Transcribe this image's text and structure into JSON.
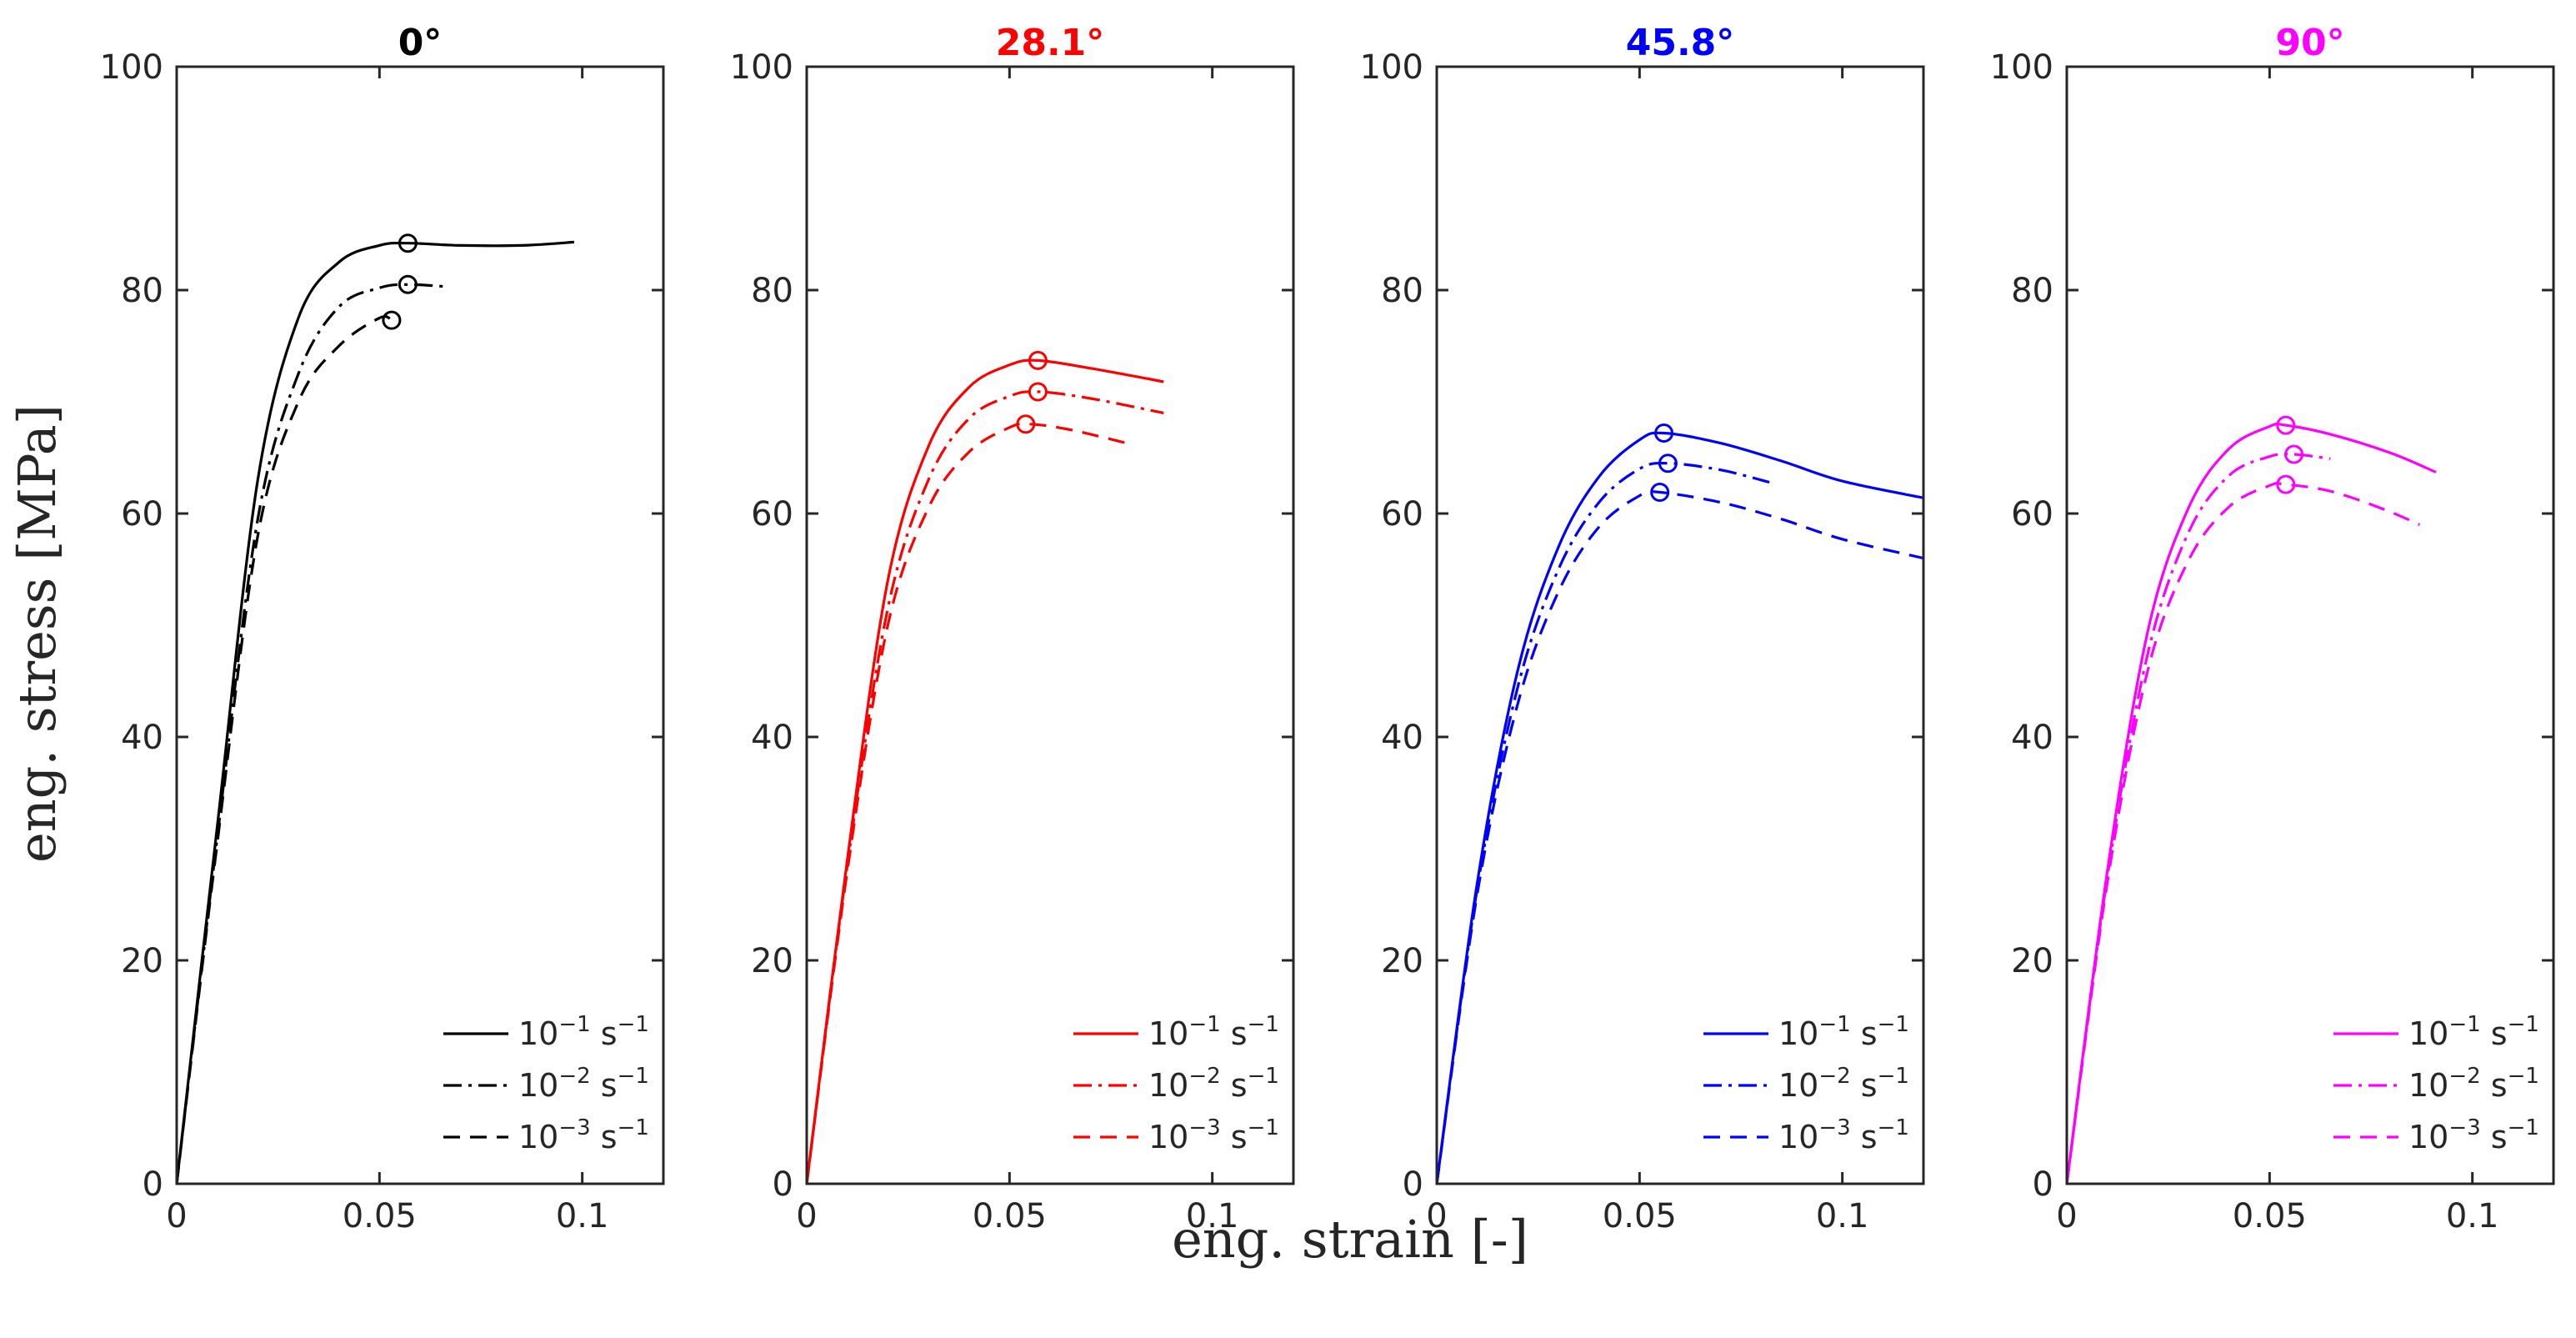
{
  "figure": {
    "xlabel": "eng. strain [-]",
    "ylabel": "eng. stress [MPa]"
  },
  "chart_data": [
    {
      "type": "line",
      "title": "0°",
      "title_color": "#000000",
      "color": "#000000",
      "xlim": [
        0,
        0.12
      ],
      "ylim": [
        0,
        100
      ],
      "xticks": [
        0,
        0.05,
        0.1
      ],
      "xtick_labels": [
        "0",
        "0.05",
        "0.1"
      ],
      "yticks": [
        0,
        20,
        40,
        60,
        80,
        100
      ],
      "ytick_labels": [
        "0",
        "20",
        "40",
        "60",
        "80",
        "100"
      ],
      "legend": "bottom-right",
      "series": [
        {
          "name": "10⁻¹ s⁻¹",
          "base": "10",
          "exp": "−1",
          "unit": "s",
          "unit_exp": "−1",
          "style": "solid",
          "x": [
            0,
            0.01,
            0.02,
            0.03,
            0.04,
            0.05,
            0.057,
            0.07,
            0.085,
            0.098
          ],
          "y": [
            0,
            32,
            63,
            77.5,
            82.5,
            84,
            84.2,
            84,
            84,
            84.3
          ],
          "peak": [
            0.057,
            84.2
          ]
        },
        {
          "name": "10⁻² s⁻¹",
          "base": "10",
          "exp": "−2",
          "unit": "s",
          "unit_exp": "−1",
          "style": "dashdot",
          "x": [
            0,
            0.01,
            0.02,
            0.03,
            0.04,
            0.05,
            0.057,
            0.067
          ],
          "y": [
            0,
            31,
            59.5,
            72.5,
            78.5,
            80.2,
            80.5,
            80.3
          ],
          "peak": [
            0.057,
            80.5
          ]
        },
        {
          "name": "10⁻³ s⁻¹",
          "base": "10",
          "exp": "−3",
          "unit": "s",
          "unit_exp": "−1",
          "style": "dashed",
          "x": [
            0,
            0.01,
            0.02,
            0.03,
            0.04,
            0.05,
            0.053
          ],
          "y": [
            0,
            30.5,
            58,
            70,
            75,
            77.5,
            77.3
          ],
          "peak": [
            0.053,
            77.3
          ]
        }
      ]
    },
    {
      "type": "line",
      "title": "28.1°",
      "title_color": "#ff0000",
      "color": "#ff0000",
      "xlim": [
        0,
        0.12
      ],
      "ylim": [
        0,
        100
      ],
      "xticks": [
        0,
        0.05,
        0.1
      ],
      "xtick_labels": [
        "0",
        "0.05",
        "0.1"
      ],
      "yticks": [
        0,
        20,
        40,
        60,
        80,
        100
      ],
      "ytick_labels": [
        "0",
        "20",
        "40",
        "60",
        "80",
        "100"
      ],
      "legend": "bottom-right",
      "series": [
        {
          "name": "10⁻¹ s⁻¹",
          "base": "10",
          "exp": "−1",
          "unit": "s",
          "unit_exp": "−1",
          "style": "solid",
          "x": [
            0,
            0.01,
            0.02,
            0.03,
            0.04,
            0.05,
            0.057,
            0.07,
            0.088
          ],
          "y": [
            0,
            29,
            54,
            66,
            71.3,
            73.3,
            73.7,
            73,
            71.8
          ],
          "peak": [
            0.057,
            73.7
          ]
        },
        {
          "name": "10⁻² s⁻¹",
          "base": "10",
          "exp": "−2",
          "unit": "s",
          "unit_exp": "−1",
          "style": "dashdot",
          "x": [
            0,
            0.01,
            0.02,
            0.03,
            0.04,
            0.05,
            0.057,
            0.07,
            0.088
          ],
          "y": [
            0,
            28.5,
            51.5,
            63,
            68.5,
            70.5,
            70.9,
            70.3,
            69
          ],
          "peak": [
            0.057,
            70.9
          ]
        },
        {
          "name": "10⁻³ s⁻¹",
          "base": "10",
          "exp": "−3",
          "unit": "s",
          "unit_exp": "−1",
          "style": "dashed",
          "x": [
            0,
            0.01,
            0.02,
            0.03,
            0.04,
            0.05,
            0.055,
            0.065,
            0.08
          ],
          "y": [
            0,
            28,
            50,
            60.5,
            65.5,
            67.7,
            68,
            67.5,
            66.2
          ],
          "peak": [
            0.054,
            68
          ]
        }
      ]
    },
    {
      "type": "line",
      "title": "45.8°",
      "title_color": "#0000ff",
      "color": "#0000ff",
      "xlim": [
        0,
        0.12
      ],
      "ylim": [
        0,
        100
      ],
      "xticks": [
        0,
        0.05,
        0.1
      ],
      "xtick_labels": [
        "0",
        "0.05",
        "0.1"
      ],
      "yticks": [
        0,
        20,
        40,
        60,
        80,
        100
      ],
      "ytick_labels": [
        "0",
        "20",
        "40",
        "60",
        "80",
        "100"
      ],
      "legend": "bottom-right",
      "series": [
        {
          "name": "10⁻¹ s⁻¹",
          "base": "10",
          "exp": "−1",
          "unit": "s",
          "unit_exp": "−1",
          "style": "solid",
          "x": [
            0,
            0.01,
            0.02,
            0.03,
            0.04,
            0.05,
            0.056,
            0.07,
            0.085,
            0.1,
            0.12
          ],
          "y": [
            0,
            27,
            46,
            57,
            63.3,
            66.6,
            67.2,
            66.3,
            64.7,
            62.9,
            61.4
          ],
          "peak": [
            0.056,
            67.2
          ]
        },
        {
          "name": "10⁻² s⁻¹",
          "base": "10",
          "exp": "−2",
          "unit": "s",
          "unit_exp": "−1",
          "style": "dashdot",
          "x": [
            0,
            0.01,
            0.02,
            0.03,
            0.04,
            0.05,
            0.057,
            0.07,
            0.082
          ],
          "y": [
            0,
            26.5,
            44.5,
            55,
            61,
            64,
            64.5,
            63.9,
            62.8
          ],
          "peak": [
            0.057,
            64.5
          ]
        },
        {
          "name": "10⁻³ s⁻¹",
          "base": "10",
          "exp": "−3",
          "unit": "s",
          "unit_exp": "−1",
          "style": "dashed",
          "x": [
            0,
            0.01,
            0.02,
            0.03,
            0.04,
            0.05,
            0.055,
            0.07,
            0.085,
            0.1,
            0.12
          ],
          "y": [
            0,
            26,
            43,
            53,
            58.8,
            61.6,
            61.9,
            61,
            59.5,
            57.7,
            56
          ],
          "peak": [
            0.055,
            61.9
          ]
        }
      ]
    },
    {
      "type": "line",
      "title": "90°",
      "title_color": "#ff00ff",
      "color": "#ff00ff",
      "xlim": [
        0,
        0.12
      ],
      "ylim": [
        0,
        100
      ],
      "xticks": [
        0,
        0.05,
        0.1
      ],
      "xtick_labels": [
        "0",
        "0.05",
        "0.1"
      ],
      "yticks": [
        0,
        20,
        40,
        60,
        80,
        100
      ],
      "ytick_labels": [
        "0",
        "20",
        "40",
        "60",
        "80",
        "100"
      ],
      "legend": "bottom-right",
      "series": [
        {
          "name": "10⁻¹ s⁻¹",
          "base": "10",
          "exp": "−1",
          "unit": "s",
          "unit_exp": "−1",
          "style": "solid",
          "x": [
            0,
            0.01,
            0.02,
            0.03,
            0.04,
            0.05,
            0.054,
            0.065,
            0.08,
            0.091
          ],
          "y": [
            0,
            28,
            49.5,
            60.5,
            65.8,
            67.8,
            67.9,
            67.1,
            65.4,
            63.7
          ],
          "peak": [
            0.054,
            67.9
          ]
        },
        {
          "name": "10⁻² s⁻¹",
          "base": "10",
          "exp": "−2",
          "unit": "s",
          "unit_exp": "−1",
          "style": "dashdot",
          "x": [
            0,
            0.01,
            0.02,
            0.03,
            0.04,
            0.05,
            0.056,
            0.065
          ],
          "y": [
            0,
            27.5,
            47.5,
            58.3,
            63.4,
            65.1,
            65.3,
            64.9
          ],
          "peak": [
            0.056,
            65.3
          ]
        },
        {
          "name": "10⁻³ s⁻¹",
          "base": "10",
          "exp": "−3",
          "unit": "s",
          "unit_exp": "−1",
          "style": "dashed",
          "x": [
            0,
            0.01,
            0.02,
            0.03,
            0.04,
            0.05,
            0.054,
            0.065,
            0.078,
            0.087
          ],
          "y": [
            0,
            27,
            46,
            55.8,
            60.6,
            62.5,
            62.6,
            62,
            60.4,
            59
          ],
          "peak": [
            0.054,
            62.6
          ]
        }
      ]
    }
  ]
}
